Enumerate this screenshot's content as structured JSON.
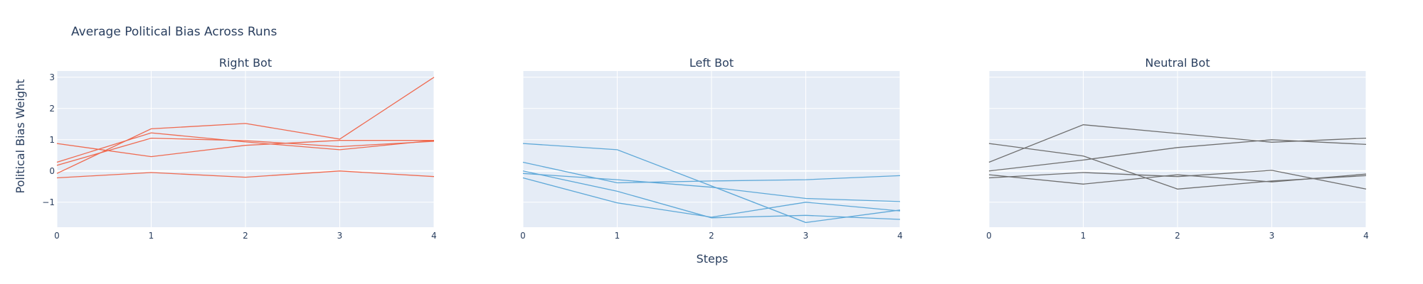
{
  "chart_data": {
    "type": "line",
    "title": "Average Political Bias Across Runs",
    "ylabel": "Political Bias Weight",
    "xlabel": "Steps",
    "x": [
      0,
      1,
      2,
      3,
      4
    ],
    "ylim": [
      -1.8,
      3.2
    ],
    "xlim": [
      0,
      4
    ],
    "yticks": [
      3,
      2,
      1,
      0,
      -1
    ],
    "ytick_labels": [
      "3",
      "2",
      "1",
      "0",
      "−1"
    ],
    "xtick_labels": [
      "0",
      "1",
      "2",
      "3",
      "4"
    ],
    "grid": true,
    "panels": [
      {
        "title": "Right Bot",
        "color": "#ef6a50",
        "series": [
          {
            "values": [
              0.88,
              0.46,
              0.82,
              0.98,
              0.98
            ]
          },
          {
            "values": [
              0.28,
              1.22,
              0.93,
              0.68,
              0.98
            ]
          },
          {
            "values": [
              0.18,
              1.05,
              0.97,
              0.78,
              0.95
            ]
          },
          {
            "values": [
              -0.08,
              1.35,
              1.52,
              1.02,
              3.0
            ]
          },
          {
            "values": [
              -0.22,
              -0.05,
              -0.2,
              0.0,
              -0.18
            ]
          }
        ]
      },
      {
        "title": "Left Bot",
        "color": "#5ea8d8",
        "series": [
          {
            "values": [
              0.88,
              0.68,
              -0.48,
              -1.65,
              -1.25
            ]
          },
          {
            "values": [
              0.28,
              -0.38,
              -0.32,
              -0.28,
              -0.15
            ]
          },
          {
            "values": [
              0.0,
              -0.65,
              -1.5,
              -1.42,
              -1.55
            ]
          },
          {
            "values": [
              -0.08,
              -0.28,
              -0.52,
              -0.88,
              -0.98
            ]
          },
          {
            "values": [
              -0.22,
              -1.02,
              -1.48,
              -1.0,
              -1.28
            ]
          }
        ]
      },
      {
        "title": "Neutral Bot",
        "color": "#6e6e6e",
        "series": [
          {
            "values": [
              0.88,
              0.48,
              -0.58,
              -0.32,
              -0.15
            ]
          },
          {
            "values": [
              0.28,
              1.48,
              1.2,
              0.92,
              1.05
            ]
          },
          {
            "values": [
              0.0,
              0.35,
              0.75,
              1.0,
              0.85
            ]
          },
          {
            "values": [
              -0.12,
              -0.42,
              -0.12,
              -0.35,
              -0.1
            ]
          },
          {
            "values": [
              -0.22,
              -0.05,
              -0.18,
              0.02,
              -0.58
            ]
          }
        ]
      }
    ]
  }
}
